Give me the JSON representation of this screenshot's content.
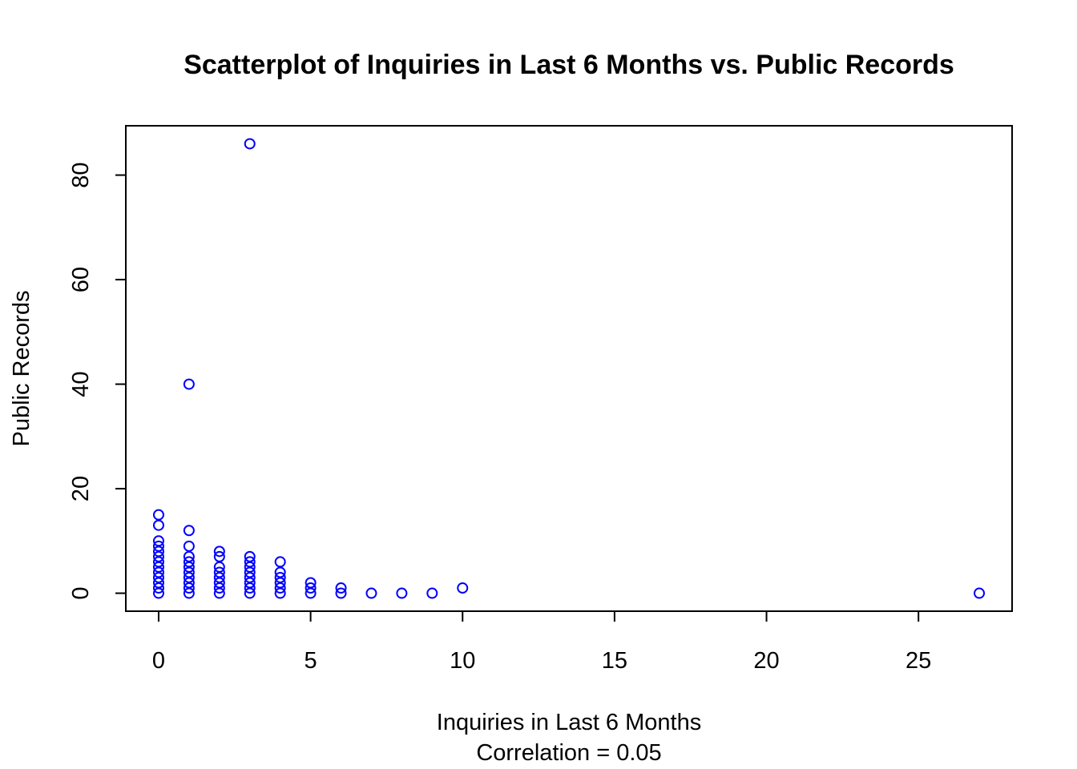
{
  "chart_data": {
    "type": "scatter",
    "title": "Scatterplot of Inquiries in Last 6 Months vs. Public Records",
    "xlabel": "Inquiries in Last 6 Months",
    "subtitle": "Correlation = 0.05",
    "ylabel": "Public Records",
    "xlim": [
      -1.08,
      28.08
    ],
    "ylim": [
      -3.44,
      89.44
    ],
    "x_ticks": [
      0,
      5,
      10,
      15,
      20,
      25
    ],
    "y_ticks": [
      0,
      20,
      40,
      60,
      80
    ],
    "grid": false,
    "point_color": "#0000ff",
    "series": [
      {
        "points": [
          [
            0,
            0
          ],
          [
            0,
            1
          ],
          [
            0,
            2
          ],
          [
            0,
            3
          ],
          [
            0,
            4
          ],
          [
            0,
            5
          ],
          [
            0,
            6
          ],
          [
            0,
            7
          ],
          [
            0,
            8
          ],
          [
            0,
            9
          ],
          [
            0,
            10
          ],
          [
            0,
            13
          ],
          [
            0,
            15
          ],
          [
            1,
            0
          ],
          [
            1,
            1
          ],
          [
            1,
            2
          ],
          [
            1,
            3
          ],
          [
            1,
            4
          ],
          [
            1,
            5
          ],
          [
            1,
            6
          ],
          [
            1,
            7
          ],
          [
            1,
            9
          ],
          [
            1,
            12
          ],
          [
            1,
            40
          ],
          [
            2,
            0
          ],
          [
            2,
            1
          ],
          [
            2,
            2
          ],
          [
            2,
            3
          ],
          [
            2,
            4
          ],
          [
            2,
            5
          ],
          [
            2,
            7
          ],
          [
            2,
            8
          ],
          [
            3,
            0
          ],
          [
            3,
            1
          ],
          [
            3,
            2
          ],
          [
            3,
            3
          ],
          [
            3,
            4
          ],
          [
            3,
            5
          ],
          [
            3,
            6
          ],
          [
            3,
            7
          ],
          [
            3,
            86
          ],
          [
            4,
            0
          ],
          [
            4,
            1
          ],
          [
            4,
            2
          ],
          [
            4,
            3
          ],
          [
            4,
            4
          ],
          [
            4,
            6
          ],
          [
            5,
            0
          ],
          [
            5,
            1
          ],
          [
            5,
            2
          ],
          [
            6,
            0
          ],
          [
            6,
            1
          ],
          [
            7,
            0
          ],
          [
            8,
            0
          ],
          [
            9,
            0
          ],
          [
            10,
            1
          ],
          [
            27,
            0
          ]
        ]
      }
    ]
  }
}
